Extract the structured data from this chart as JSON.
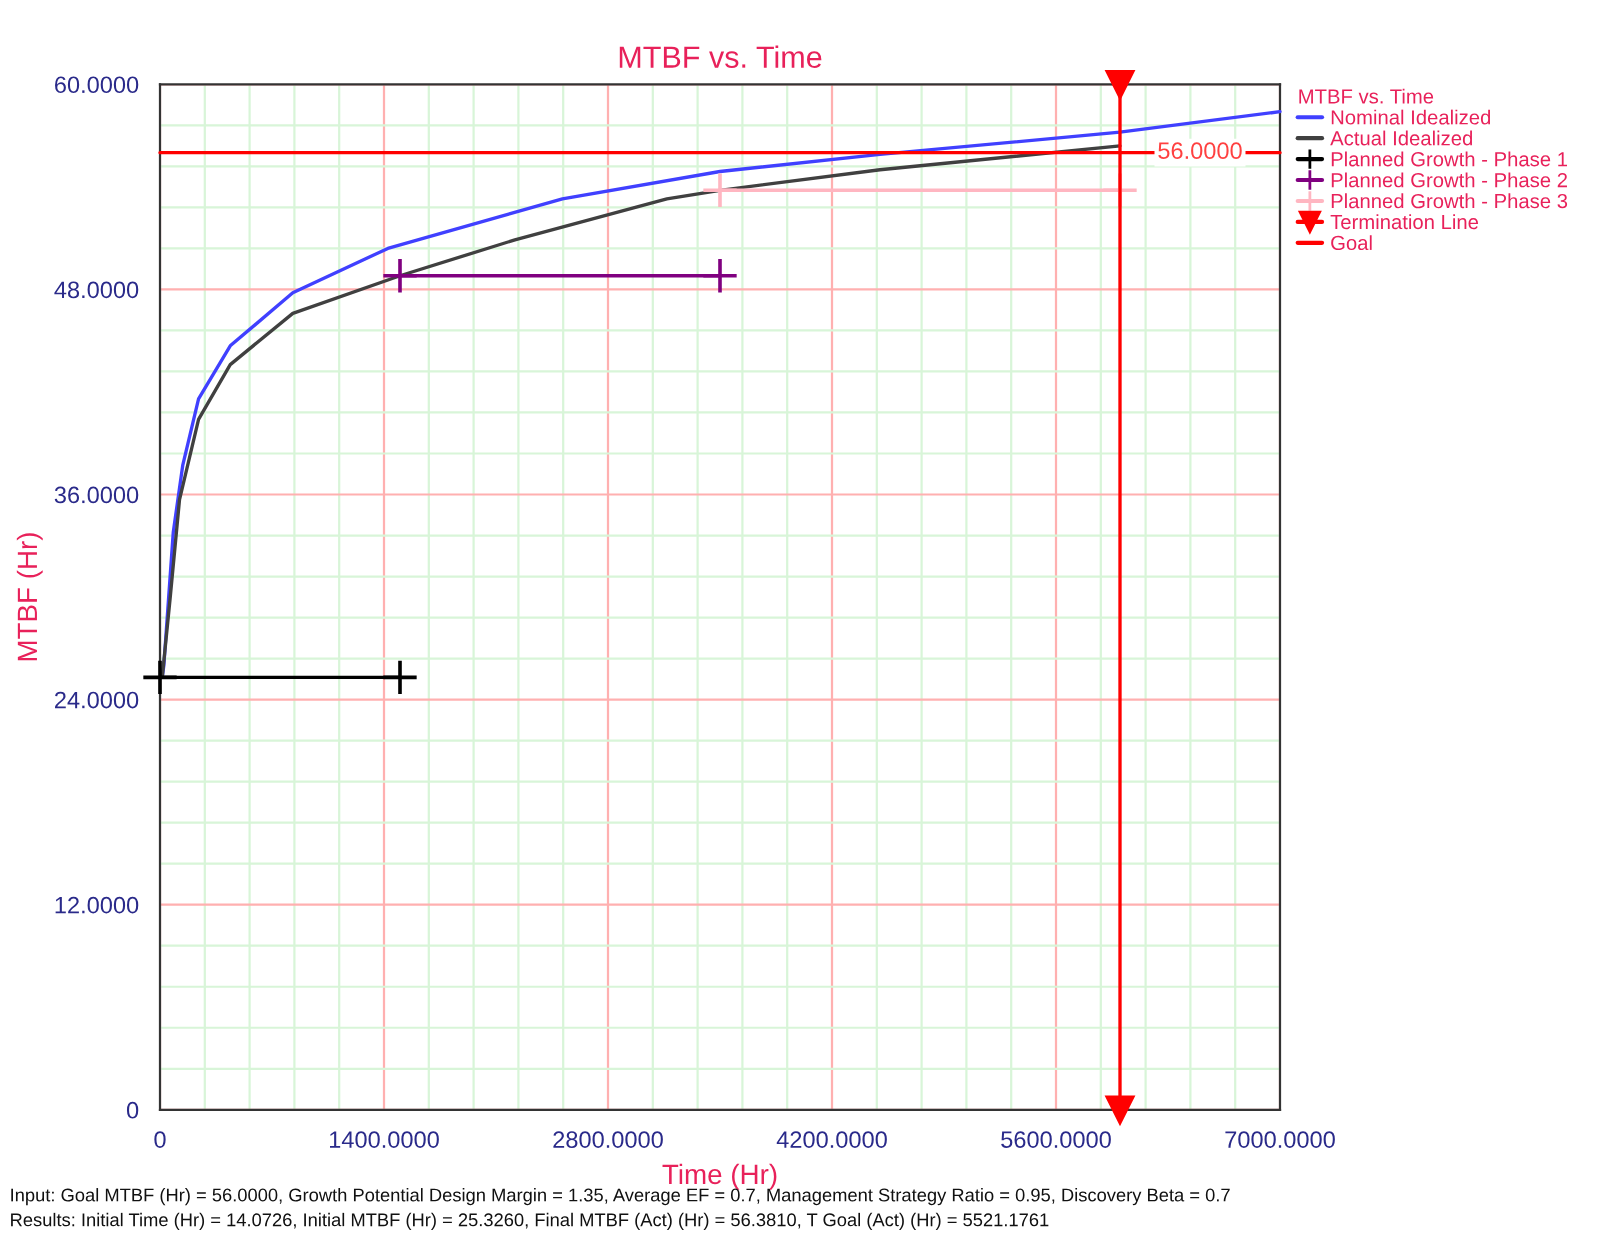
{
  "chart_data": {
    "type": "line",
    "title": "MTBF vs. Time",
    "xlabel": "Time (Hr)",
    "ylabel": "MTBF (Hr)",
    "legend_title": "MTBF vs. Time",
    "xlim": [
      0,
      7000
    ],
    "ylim": [
      0,
      60
    ],
    "xticks": [
      0,
      {
        "value": 1400,
        "label": "1400.0000"
      },
      {
        "value": 2800,
        "label": "2800.0000"
      },
      {
        "value": 4200,
        "label": "4200.0000"
      },
      {
        "value": 5600,
        "label": "5600.0000"
      },
      {
        "value": 7000,
        "label": "7000.0000"
      }
    ],
    "yticks": [
      0,
      {
        "value": 12,
        "label": "12.0000"
      },
      {
        "value": 24,
        "label": "24.0000"
      },
      {
        "value": 36,
        "label": "36.0000"
      },
      {
        "value": 48,
        "label": "48.0000"
      },
      {
        "value": 60,
        "label": "60.0000"
      }
    ],
    "grid": true,
    "legend": "top right",
    "series": [
      {
        "name": "Nominal Idealized",
        "color": "#4040ff",
        "marker": "none",
        "x": [
          14,
          24,
          83,
          142,
          241,
          439,
          830,
          1424,
          2515,
          3500,
          4500,
          6000,
          7000
        ],
        "values": [
          25.3,
          26.0,
          33.8,
          37.7,
          41.6,
          44.7,
          47.8,
          50.4,
          53.3,
          54.9,
          55.9,
          57.2,
          58.4
        ]
      },
      {
        "name": "Actual Idealized",
        "color": "#404040",
        "marker": "none",
        "x": [
          14,
          63,
          122,
          241,
          439,
          830,
          1500,
          2218,
          3168,
          3500,
          4500,
          6000
        ],
        "values": [
          25.3,
          29.9,
          35.7,
          40.4,
          43.6,
          46.6,
          48.8,
          50.9,
          53.3,
          53.8,
          55.0,
          56.4
        ]
      },
      {
        "name": "Planned Growth - Phase 1",
        "color": "#000000",
        "marker": "cross",
        "x": [
          0,
          1500
        ],
        "values": [
          25.3,
          25.3
        ]
      },
      {
        "name": "Planned Growth - Phase 2",
        "color": "#800080",
        "marker": "cross",
        "x": [
          1500,
          3500
        ],
        "values": [
          48.8,
          48.8
        ]
      },
      {
        "name": "Planned Growth - Phase 3",
        "color": "#ffb6c1",
        "marker": "cross",
        "x": [
          3500,
          6000
        ],
        "values": [
          53.8,
          53.8
        ]
      },
      {
        "name": "Termination Line",
        "color": "#ff0000",
        "marker": "triangle",
        "x": [
          6000,
          6000
        ],
        "values": [
          0,
          60
        ]
      },
      {
        "name": "Goal",
        "color": "#ff0000",
        "marker": "none",
        "x": [
          0,
          7000
        ],
        "values": [
          56,
          56
        ]
      }
    ],
    "annotations": [
      {
        "text": "56.0000",
        "x": 6500,
        "y": 56
      },
      "Input: Goal MTBF (Hr) = 56.0000, Growth Potential Design Margin = 1.35, Average EF = 0.7, Management Strategy Ratio = 0.95, Discovery Beta = 0.7",
      "Results: Initial Time (Hr) = 14.0726, Initial MTBF (Hr) = 25.3260, Final MTBF (Act) (Hr) = 56.3810, T Goal (Act) (Hr) = 5521.1761"
    ]
  }
}
